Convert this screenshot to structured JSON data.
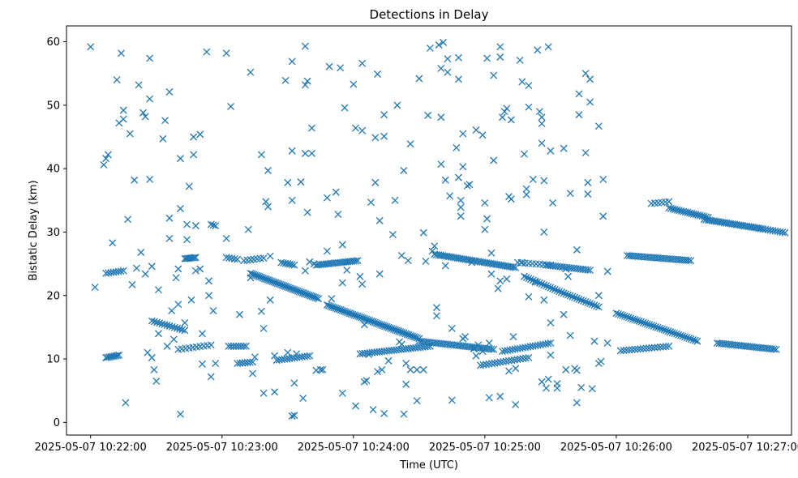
{
  "chart_data": {
    "type": "scatter",
    "title": "Detections in Delay",
    "xlabel": "Time (UTC)",
    "ylabel": "Bistatic Delay (km)",
    "x_units": "seconds since 2025-05-07 10:22:00 UTC",
    "xlim": [
      -11,
      320
    ],
    "ylim": [
      -2,
      62.5
    ],
    "x_ticks": [
      {
        "value": 0,
        "label": "2025-05-07 10:22:00"
      },
      {
        "value": 60,
        "label": "2025-05-07 10:23:00"
      },
      {
        "value": 120,
        "label": "2025-05-07 10:24:00"
      },
      {
        "value": 180,
        "label": "2025-05-07 10:25:00"
      },
      {
        "value": 240,
        "label": "2025-05-07 10:26:00"
      },
      {
        "value": 300,
        "label": "2025-05-07 10:27:00"
      }
    ],
    "y_ticks": [
      {
        "value": 0,
        "label": "0"
      },
      {
        "value": 10,
        "label": "10"
      },
      {
        "value": 20,
        "label": "20"
      },
      {
        "value": 30,
        "label": "30"
      },
      {
        "value": 40,
        "label": "40"
      },
      {
        "value": 50,
        "label": "50"
      },
      {
        "value": 60,
        "label": "60"
      }
    ],
    "marker": "x",
    "color": "#1f77b4",
    "tracks": [
      {
        "name": "track-a",
        "start": [
          7,
          10.2
        ],
        "end": [
          13,
          10.6
        ],
        "count": 9
      },
      {
        "name": "track-b",
        "start": [
          7,
          23.5
        ],
        "end": [
          15,
          23.9
        ],
        "count": 8
      },
      {
        "name": "track-c",
        "start": [
          28,
          16.0
        ],
        "end": [
          43,
          14.5
        ],
        "count": 14
      },
      {
        "name": "track-d",
        "start": [
          43,
          25.8
        ],
        "end": [
          48,
          26.0
        ],
        "count": 8
      },
      {
        "name": "track-e",
        "start": [
          40,
          11.5
        ],
        "end": [
          55,
          12.2
        ],
        "count": 10
      },
      {
        "name": "track-f",
        "start": [
          55,
          31.2
        ],
        "end": [
          57,
          31.0
        ],
        "count": 3
      },
      {
        "name": "track-g",
        "start": [
          62,
          26.0
        ],
        "end": [
          67,
          25.7
        ],
        "count": 5
      },
      {
        "name": "track-h",
        "start": [
          63,
          12.0
        ],
        "end": [
          71,
          12.0
        ],
        "count": 8
      },
      {
        "name": "track-i",
        "start": [
          67,
          9.3
        ],
        "end": [
          74,
          9.5
        ],
        "count": 7
      },
      {
        "name": "track-j",
        "start": [
          70,
          25.5
        ],
        "end": [
          79,
          25.9
        ],
        "count": 7
      },
      {
        "name": "track-k",
        "start": [
          73,
          23.5
        ],
        "end": [
          104,
          19.5
        ],
        "count": 44
      },
      {
        "name": "track-l",
        "start": [
          87,
          25.2
        ],
        "end": [
          93,
          24.8
        ],
        "count": 7
      },
      {
        "name": "track-m",
        "start": [
          85,
          9.8
        ],
        "end": [
          100,
          10.5
        ],
        "count": 14
      },
      {
        "name": "track-n",
        "start": [
          103,
          24.8
        ],
        "end": [
          122,
          25.5
        ],
        "count": 22
      },
      {
        "name": "track-o",
        "start": [
          108,
          18.5
        ],
        "end": [
          150,
          13.2
        ],
        "count": 55
      },
      {
        "name": "track-p",
        "start": [
          123,
          10.8
        ],
        "end": [
          155,
          12.0
        ],
        "count": 30
      },
      {
        "name": "track-q",
        "start": [
          146,
          8.3
        ],
        "end": [
          152,
          8.3
        ],
        "count": 3
      },
      {
        "name": "track-r",
        "start": [
          157,
          26.5
        ],
        "end": [
          194,
          24.4
        ],
        "count": 40
      },
      {
        "name": "track-s",
        "start": [
          150,
          12.8
        ],
        "end": [
          184,
          11.5
        ],
        "count": 35
      },
      {
        "name": "track-t",
        "start": [
          178,
          9.0
        ],
        "end": [
          200,
          10.2
        ],
        "count": 18
      },
      {
        "name": "track-u",
        "start": [
          188,
          11.2
        ],
        "end": [
          210,
          12.5
        ],
        "count": 20
      },
      {
        "name": "track-v",
        "start": [
          195,
          25.2
        ],
        "end": [
          210,
          24.8
        ],
        "count": 10
      },
      {
        "name": "track-w",
        "start": [
          198,
          23.0
        ],
        "end": [
          215,
          20.5
        ],
        "count": 18
      },
      {
        "name": "track-x",
        "start": [
          208,
          24.8
        ],
        "end": [
          228,
          24.0
        ],
        "count": 20
      },
      {
        "name": "track-y",
        "start": [
          215,
          20.5
        ],
        "end": [
          232,
          18.2
        ],
        "count": 18
      },
      {
        "name": "track-z",
        "start": [
          240,
          17.2
        ],
        "end": [
          277,
          12.8
        ],
        "count": 40
      },
      {
        "name": "track-aa",
        "start": [
          245,
          26.3
        ],
        "end": [
          274,
          25.5
        ],
        "count": 30
      },
      {
        "name": "track-ab",
        "start": [
          242,
          11.3
        ],
        "end": [
          264,
          12.0
        ],
        "count": 18
      },
      {
        "name": "track-ac",
        "start": [
          256,
          34.5
        ],
        "end": [
          264,
          34.8
        ],
        "count": 6
      },
      {
        "name": "track-ad",
        "start": [
          264,
          33.8
        ],
        "end": [
          282,
          32.3
        ],
        "count": 20
      },
      {
        "name": "track-ae",
        "start": [
          280,
          32.0
        ],
        "end": [
          307,
          30.5
        ],
        "count": 30
      },
      {
        "name": "track-af",
        "start": [
          286,
          12.5
        ],
        "end": [
          313,
          11.5
        ],
        "count": 28
      },
      {
        "name": "track-ag",
        "start": [
          307,
          30.5
        ],
        "end": [
          317,
          29.9
        ],
        "count": 10
      }
    ],
    "scattered_points": [
      [
        0,
        59.2
      ],
      [
        2,
        21.3
      ],
      [
        6,
        40.6
      ],
      [
        7,
        41.6
      ],
      [
        8,
        42.2
      ],
      [
        10,
        28.3
      ],
      [
        12,
        54.0
      ],
      [
        13,
        47.2
      ],
      [
        14,
        58.2
      ],
      [
        15,
        49.2
      ],
      [
        15,
        47.8
      ],
      [
        16,
        3.1
      ],
      [
        17,
        32.0
      ],
      [
        18,
        45.5
      ],
      [
        19,
        21.7
      ],
      [
        20,
        38.2
      ],
      [
        21,
        24.3
      ],
      [
        22,
        53.2
      ],
      [
        23,
        26.8
      ],
      [
        24,
        48.8
      ],
      [
        25,
        48.2
      ],
      [
        25,
        23.4
      ],
      [
        26,
        11.0
      ],
      [
        27,
        57.4
      ],
      [
        27,
        51.0
      ],
      [
        27,
        38.3
      ],
      [
        28,
        24.6
      ],
      [
        28,
        10.2
      ],
      [
        29,
        8.3
      ],
      [
        30,
        6.5
      ],
      [
        31,
        14.0
      ],
      [
        31,
        20.9
      ],
      [
        33,
        44.7
      ],
      [
        34,
        47.6
      ],
      [
        35,
        12.0
      ],
      [
        36,
        32.2
      ],
      [
        36,
        29.0
      ],
      [
        36,
        52.1
      ],
      [
        37,
        17.6
      ],
      [
        38,
        13.1
      ],
      [
        39,
        22.8
      ],
      [
        40,
        18.6
      ],
      [
        40,
        24.2
      ],
      [
        41,
        41.6
      ],
      [
        41,
        33.7
      ],
      [
        41,
        1.3
      ],
      [
        43,
        15.7
      ],
      [
        44,
        31.2
      ],
      [
        44,
        28.8
      ],
      [
        45,
        37.2
      ],
      [
        46,
        19.3
      ],
      [
        47,
        42.2
      ],
      [
        47,
        45.0
      ],
      [
        48,
        23.9
      ],
      [
        48,
        31.0
      ],
      [
        50,
        45.4
      ],
      [
        50,
        24.2
      ],
      [
        51,
        14.0
      ],
      [
        51,
        9.2
      ],
      [
        53,
        58.4
      ],
      [
        54,
        22.3
      ],
      [
        54,
        20.0
      ],
      [
        55,
        7.2
      ],
      [
        56,
        17.6
      ],
      [
        57,
        9.3
      ],
      [
        62,
        29.0
      ],
      [
        62,
        58.2
      ],
      [
        64,
        49.8
      ],
      [
        68,
        17.0
      ],
      [
        72,
        30.4
      ],
      [
        73,
        55.2
      ],
      [
        73,
        22.8
      ],
      [
        74,
        7.7
      ],
      [
        75,
        10.3
      ],
      [
        78,
        42.2
      ],
      [
        78,
        17.5
      ],
      [
        79,
        14.8
      ],
      [
        79,
        4.6
      ],
      [
        80,
        34.8
      ],
      [
        81,
        34.0
      ],
      [
        81,
        39.7
      ],
      [
        82,
        26.2
      ],
      [
        82,
        19.3
      ],
      [
        84,
        4.8
      ],
      [
        84,
        10.5
      ],
      [
        89,
        53.9
      ],
      [
        90,
        37.8
      ],
      [
        90,
        11.0
      ],
      [
        92,
        35.0
      ],
      [
        92,
        56.9
      ],
      [
        92,
        42.8
      ],
      [
        92,
        1.0
      ],
      [
        93,
        1.1
      ],
      [
        93,
        6.2
      ],
      [
        94,
        10.8
      ],
      [
        96,
        37.9
      ],
      [
        97,
        3.8
      ],
      [
        98,
        59.3
      ],
      [
        98,
        42.4
      ],
      [
        98,
        23.9
      ],
      [
        98,
        53.2
      ],
      [
        99,
        53.8
      ],
      [
        99,
        33.1
      ],
      [
        100,
        25.3
      ],
      [
        101,
        42.4
      ],
      [
        101,
        46.4
      ],
      [
        102,
        25.0
      ],
      [
        103,
        8.2
      ],
      [
        105,
        8.3
      ],
      [
        106,
        8.3
      ],
      [
        108,
        35.4
      ],
      [
        108,
        27.0
      ],
      [
        109,
        56.1
      ],
      [
        110,
        19.5
      ],
      [
        112,
        36.3
      ],
      [
        113,
        32.8
      ],
      [
        114,
        55.9
      ],
      [
        115,
        4.6
      ],
      [
        115,
        22.0
      ],
      [
        115,
        28.0
      ],
      [
        116,
        49.6
      ],
      [
        117,
        24.0
      ],
      [
        120,
        53.3
      ],
      [
        121,
        46.4
      ],
      [
        121,
        2.6
      ],
      [
        123,
        23.0
      ],
      [
        124,
        21.8
      ],
      [
        124,
        46.0
      ],
      [
        124,
        56.6
      ],
      [
        125,
        15.4
      ],
      [
        125,
        6.4
      ],
      [
        126,
        6.6
      ],
      [
        127,
        10.7
      ],
      [
        128,
        34.7
      ],
      [
        129,
        2.0
      ],
      [
        130,
        37.8
      ],
      [
        130,
        44.9
      ],
      [
        131,
        54.9
      ],
      [
        131,
        8.0
      ],
      [
        132,
        23.4
      ],
      [
        132,
        31.8
      ],
      [
        133,
        8.3
      ],
      [
        134,
        45.1
      ],
      [
        134,
        48.5
      ],
      [
        134,
        1.4
      ],
      [
        136,
        9.7
      ],
      [
        138,
        29.6
      ],
      [
        139,
        35.0
      ],
      [
        140,
        50.0
      ],
      [
        141,
        12.7
      ],
      [
        142,
        12.3
      ],
      [
        142,
        26.3
      ],
      [
        143,
        39.7
      ],
      [
        143,
        1.3
      ],
      [
        144,
        6.0
      ],
      [
        144,
        9.3
      ],
      [
        145,
        25.5
      ],
      [
        146,
        43.9
      ],
      [
        149,
        3.4
      ],
      [
        150,
        54.2
      ],
      [
        152,
        29.9
      ],
      [
        153,
        25.4
      ],
      [
        154,
        48.4
      ],
      [
        155,
        59.0
      ],
      [
        156,
        27.0
      ],
      [
        157,
        27.8
      ],
      [
        158,
        16.8
      ],
      [
        158,
        18.1
      ],
      [
        159,
        59.5
      ],
      [
        160,
        55.8
      ],
      [
        160,
        48.1
      ],
      [
        160,
        40.7
      ],
      [
        161,
        59.9
      ],
      [
        162,
        24.7
      ],
      [
        162,
        38.2
      ],
      [
        163,
        57.3
      ],
      [
        163,
        55.2
      ],
      [
        164,
        35.7
      ],
      [
        165,
        14.8
      ],
      [
        165,
        3.5
      ],
      [
        167,
        43.3
      ],
      [
        168,
        54.1
      ],
      [
        168,
        57.5
      ],
      [
        168,
        38.6
      ],
      [
        169,
        35.0
      ],
      [
        169,
        33.9
      ],
      [
        169,
        32.5
      ],
      [
        170,
        40.3
      ],
      [
        170,
        45.5
      ],
      [
        170,
        13.2
      ],
      [
        171,
        13.5
      ],
      [
        172,
        37.3
      ],
      [
        173,
        37.5
      ],
      [
        174,
        25.2
      ],
      [
        175,
        11.6
      ],
      [
        176,
        46.1
      ],
      [
        176,
        10.5
      ],
      [
        177,
        12.2
      ],
      [
        179,
        11.2
      ],
      [
        179,
        45.3
      ],
      [
        180,
        34.6
      ],
      [
        180,
        30.4
      ],
      [
        181,
        32.1
      ],
      [
        181,
        57.4
      ],
      [
        182,
        12.5
      ],
      [
        182,
        3.9
      ],
      [
        183,
        23.4
      ],
      [
        183,
        26.7
      ],
      [
        184,
        41.3
      ],
      [
        184,
        54.7
      ],
      [
        186,
        21.1
      ],
      [
        187,
        4.1
      ],
      [
        187,
        22.3
      ],
      [
        187,
        59.2
      ],
      [
        187,
        57.6
      ],
      [
        188,
        48.1
      ],
      [
        189,
        49.0
      ],
      [
        190,
        49.5
      ],
      [
        190,
        22.6
      ],
      [
        191,
        35.6
      ],
      [
        191,
        8.1
      ],
      [
        192,
        35.2
      ],
      [
        192,
        47.7
      ],
      [
        193,
        13.5
      ],
      [
        194,
        2.8
      ],
      [
        194,
        8.5
      ],
      [
        196,
        57.1
      ],
      [
        197,
        53.7
      ],
      [
        197,
        25.2
      ],
      [
        198,
        42.3
      ],
      [
        199,
        36.8
      ],
      [
        199,
        35.9
      ],
      [
        200,
        49.7
      ],
      [
        200,
        53.1
      ],
      [
        200,
        19.8
      ],
      [
        202,
        38.3
      ],
      [
        203,
        22.1
      ],
      [
        204,
        58.7
      ],
      [
        205,
        49.0
      ],
      [
        206,
        47.1
      ],
      [
        206,
        44.0
      ],
      [
        206,
        48.1
      ],
      [
        206,
        6.4
      ],
      [
        207,
        30.0
      ],
      [
        207,
        38.1
      ],
      [
        207,
        19.3
      ],
      [
        208,
        5.4
      ],
      [
        209,
        6.8
      ],
      [
        209,
        59.2
      ],
      [
        210,
        42.8
      ],
      [
        210,
        15.7
      ],
      [
        210,
        10.6
      ],
      [
        211,
        34.6
      ],
      [
        213,
        6.1
      ],
      [
        213,
        5.4
      ],
      [
        216,
        43.2
      ],
      [
        216,
        17.0
      ],
      [
        217,
        24.2
      ],
      [
        217,
        8.3
      ],
      [
        218,
        23.0
      ],
      [
        219,
        36.1
      ],
      [
        219,
        13.7
      ],
      [
        221,
        8.5
      ],
      [
        222,
        8.2
      ],
      [
        222,
        27.2
      ],
      [
        222,
        3.1
      ],
      [
        223,
        48.5
      ],
      [
        223,
        51.8
      ],
      [
        224,
        5.5
      ],
      [
        226,
        42.5
      ],
      [
        226,
        55.0
      ],
      [
        227,
        36.0
      ],
      [
        227,
        37.8
      ],
      [
        228,
        54.1
      ],
      [
        228,
        50.5
      ],
      [
        229,
        5.3
      ],
      [
        230,
        12.8
      ],
      [
        232,
        9.3
      ],
      [
        232,
        20.0
      ],
      [
        232,
        46.7
      ],
      [
        233,
        9.6
      ],
      [
        234,
        38.3
      ],
      [
        234,
        32.5
      ],
      [
        236,
        23.8
      ],
      [
        236,
        12.5
      ]
    ]
  }
}
